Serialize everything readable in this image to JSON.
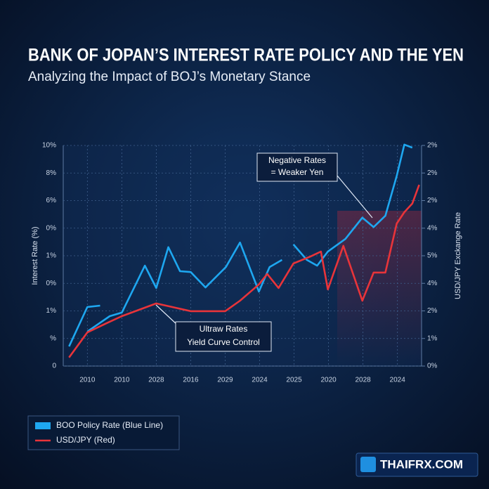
{
  "chart_data": {
    "type": "line",
    "title": "BANK OF JOPAN’S INTEREST RATE POLICY AND THE YEN",
    "subtitle": "Analyzing the Impact of BOJ’s Monetary Stance",
    "y_label": "Interest Rate (%)",
    "y2_label": "USD/JPY Exckange Rate",
    "xlim": [
      -0.7,
      9.7
    ],
    "xticks": [
      {
        "value": 0,
        "label": "2010"
      },
      {
        "value": 1,
        "label": "2010"
      },
      {
        "value": 2,
        "label": "2028"
      },
      {
        "value": 3,
        "label": "2016"
      },
      {
        "value": 4,
        "label": "2029"
      },
      {
        "value": 5,
        "label": "2024"
      },
      {
        "value": 6,
        "label": "2025"
      },
      {
        "value": 7,
        "label": "2020"
      },
      {
        "value": 8,
        "label": "2028"
      },
      {
        "value": 9,
        "label": "2024"
      }
    ],
    "ylim": [
      0,
      8
    ],
    "yticks": [
      {
        "value": 0,
        "label": "0"
      },
      {
        "value": 1,
        "label": "%"
      },
      {
        "value": 2,
        "label": "1%"
      },
      {
        "value": 3,
        "label": "0%"
      },
      {
        "value": 4,
        "label": "1%"
      },
      {
        "value": 5,
        "label": "0%"
      },
      {
        "value": 6,
        "label": "6%"
      },
      {
        "value": 7,
        "label": "8%"
      },
      {
        "value": 8,
        "label": "10%"
      }
    ],
    "y2lim": [
      0,
      8
    ],
    "y2ticks": [
      {
        "value": 0,
        "label": "0%"
      },
      {
        "value": 1,
        "label": "1%"
      },
      {
        "value": 2,
        "label": "2%"
      },
      {
        "value": 3,
        "label": "4%"
      },
      {
        "value": 4,
        "label": "5%"
      },
      {
        "value": 5,
        "label": "4%"
      },
      {
        "value": 6,
        "label": "2%"
      },
      {
        "value": 7,
        "label": "2%"
      },
      {
        "value": 8,
        "label": "2%"
      }
    ],
    "grid": true,
    "series": [
      {
        "name": "BOO Policy Rate (Blue Line)",
        "color": "#1ea7f0",
        "x": [
          -0.53,
          0,
          0.37,
          0.37,
          0,
          0.65,
          1,
          1.43,
          1.67,
          2,
          2.35,
          2.69,
          3,
          3.43,
          4.02,
          4.43,
          4.98,
          5.29,
          5.65,
          5.65,
          5.98,
          6.37,
          6.67,
          6.98,
          7.49,
          7.98,
          8.31,
          8.65,
          8.98,
          9.2,
          9.43
        ],
        "values": [
          0.71,
          2.14,
          2.19,
          null,
          1.25,
          1.81,
          1.94,
          3.03,
          3.64,
          2.83,
          4.31,
          3.44,
          3.41,
          2.85,
          3.59,
          4.48,
          2.7,
          3.59,
          3.85,
          null,
          4.41,
          3.85,
          3.64,
          4.15,
          4.61,
          5.38,
          5.04,
          5.45,
          6.9,
          8.03,
          7.92
        ]
      },
      {
        "name": "USD/JPY (Red)",
        "color": "#e8343a",
        "axis": "y2",
        "x": [
          -0.53,
          0,
          0.55,
          1,
          2,
          3,
          4,
          4.43,
          4.98,
          5.22,
          5.55,
          5.98,
          6.47,
          6.78,
          6.98,
          7.43,
          7.98,
          8.31,
          8.65,
          8.98,
          9.2,
          9.43,
          9.63
        ],
        "values": [
          0.31,
          1.22,
          1.55,
          1.81,
          2.27,
          1.99,
          1.99,
          2.37,
          2.96,
          3.34,
          2.83,
          3.72,
          3.97,
          4.15,
          2.78,
          4.36,
          2.37,
          3.39,
          3.39,
          5.17,
          5.58,
          5.89,
          6.57
        ]
      }
    ],
    "legend": "bottom-left",
    "annotations": [
      {
        "lines": [
          "Negative Rates",
          "= Weaker Yen"
        ]
      },
      {
        "lines": [
          "Ultraw Rates",
          "Yield Curve Control"
        ]
      }
    ]
  },
  "logo": "THAIFRX.COM"
}
